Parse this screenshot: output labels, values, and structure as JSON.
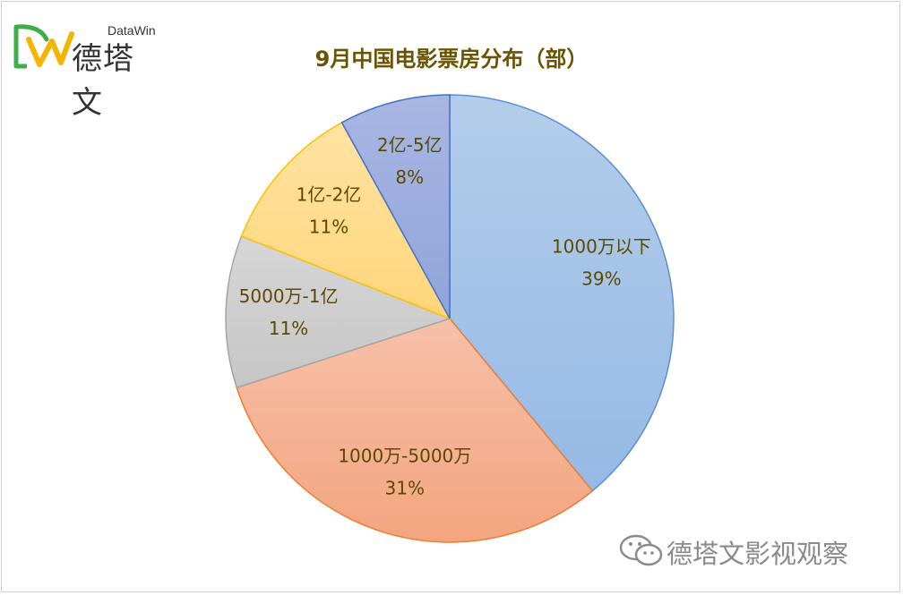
{
  "logo": {
    "brand_en": "DataWin",
    "brand_cn": "德塔文"
  },
  "watermark": {
    "text": "德塔文影视观察"
  },
  "colors": {
    "title": "#6b5300",
    "label": "#5a4a00"
  },
  "chart_data": {
    "type": "pie",
    "title": "9月中国电影票房分布（部）",
    "start_angle_deg": 0,
    "direction": "clockwise",
    "slices": [
      {
        "label": "1000万以下",
        "value": 39,
        "value_label": "39%",
        "fill_top": "#b4cdea",
        "fill_bottom": "#95b9e6",
        "stroke": "#5b8fd0"
      },
      {
        "label": "1000万-5000万",
        "value": 31,
        "value_label": "31%",
        "fill_top": "#f6c0a8",
        "fill_bottom": "#f3a57f",
        "stroke": "#ed7d31"
      },
      {
        "label": "5000万-1亿",
        "value": 11,
        "value_label": "11%",
        "fill_top": "#d6d6d6",
        "fill_bottom": "#c6c6c6",
        "stroke": "#a5a5a5"
      },
      {
        "label": "1亿-2亿",
        "value": 11,
        "value_label": "11%",
        "fill_top": "#ffe3a3",
        "fill_bottom": "#ffd57a",
        "stroke": "#ffc000"
      },
      {
        "label": "2亿-5亿",
        "value": 8,
        "value_label": "8%",
        "fill_top": "#a8b6e3",
        "fill_bottom": "#8fa4db",
        "stroke": "#4472c4"
      }
    ]
  }
}
